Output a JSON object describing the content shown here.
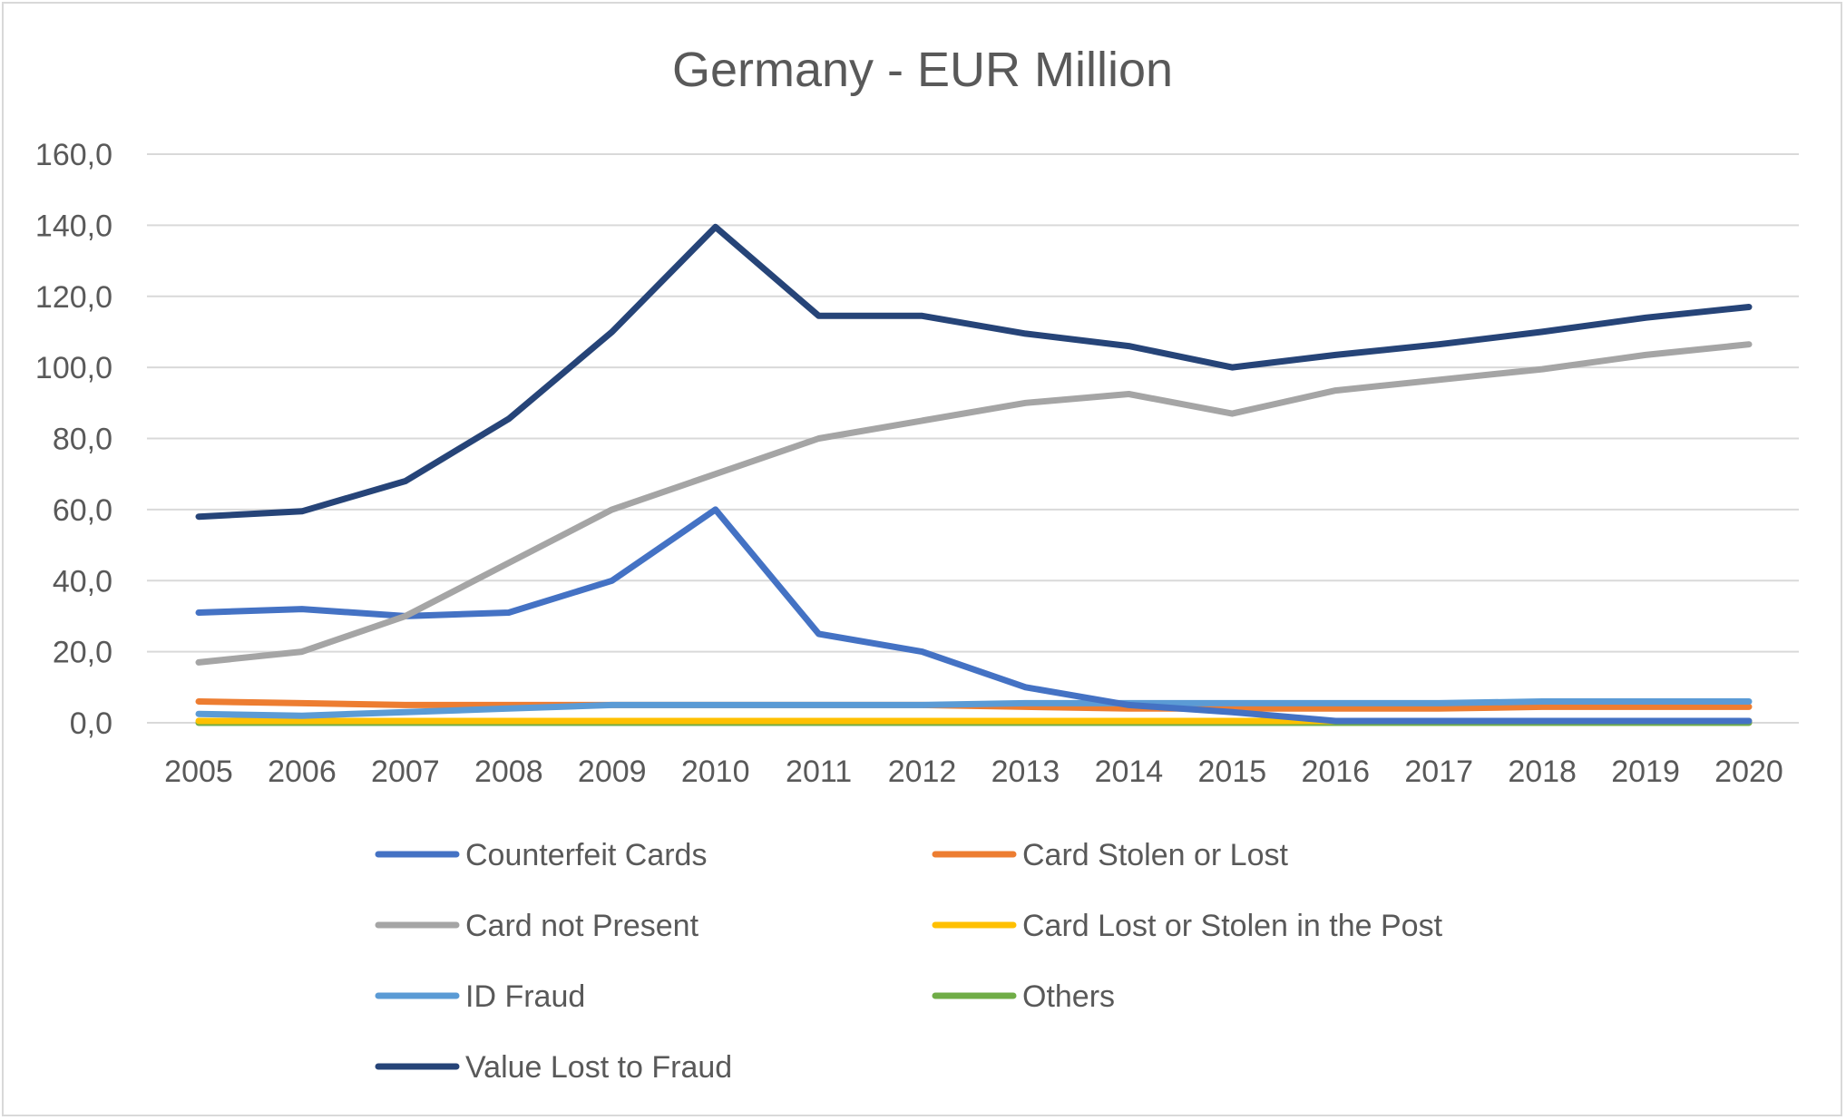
{
  "chart_data": {
    "type": "line",
    "title": "Germany - EUR Million",
    "xlabel": "",
    "ylabel": "",
    "ylim": [
      0,
      160
    ],
    "yticks": [
      "0,0",
      "20,0",
      "40,0",
      "60,0",
      "80,0",
      "100,0",
      "120,0",
      "140,0",
      "160,0"
    ],
    "grid": true,
    "legend_position": "bottom",
    "categories": [
      "2005",
      "2006",
      "2007",
      "2008",
      "2009",
      "2010",
      "2011",
      "2012",
      "2013",
      "2014",
      "2015",
      "2016",
      "2017",
      "2018",
      "2019",
      "2020"
    ],
    "series": [
      {
        "name": "Counterfeit Cards",
        "color": "#4472c4",
        "values": [
          31,
          32,
          30,
          31,
          40,
          60,
          25,
          20,
          10,
          5,
          3,
          0.5,
          0.5,
          0.5,
          0.5,
          0.5
        ]
      },
      {
        "name": "Card Stolen or Lost",
        "color": "#ed7d31",
        "values": [
          6,
          5.5,
          5,
          5,
          5,
          5,
          5,
          5,
          4.5,
          4,
          4,
          4,
          4,
          4.5,
          4.5,
          4.5
        ]
      },
      {
        "name": "Card not Present",
        "color": "#a5a5a5",
        "values": [
          17,
          20,
          30,
          45,
          60,
          70,
          80,
          85,
          90,
          92.5,
          87,
          93.5,
          96.5,
          99.5,
          103.5,
          106.5
        ]
      },
      {
        "name": "Card Lost or Stolen in the Post",
        "color": "#ffc000",
        "values": [
          0.5,
          0.5,
          0.5,
          0.5,
          0.5,
          0.5,
          0.5,
          0.5,
          0.5,
          0.5,
          0.5,
          0.5,
          0.5,
          0.5,
          0.5,
          0.5
        ]
      },
      {
        "name": "ID Fraud",
        "color": "#5b9bd5",
        "values": [
          2.5,
          2,
          3,
          4,
          5,
          5,
          5,
          5,
          5.5,
          5.5,
          5.5,
          5.5,
          5.5,
          6,
          6,
          6
        ]
      },
      {
        "name": "Others",
        "color": "#70ad47",
        "values": [
          0,
          0,
          0,
          0,
          0,
          0,
          0,
          0,
          0,
          0,
          0,
          0,
          0,
          0,
          0,
          0
        ]
      },
      {
        "name": "Value Lost to Fraud",
        "color": "#264478",
        "values": [
          58,
          59.5,
          68,
          85.5,
          110,
          139.5,
          114.5,
          114.5,
          109.5,
          106,
          100,
          103.5,
          106.5,
          110,
          114,
          117
        ]
      }
    ]
  }
}
